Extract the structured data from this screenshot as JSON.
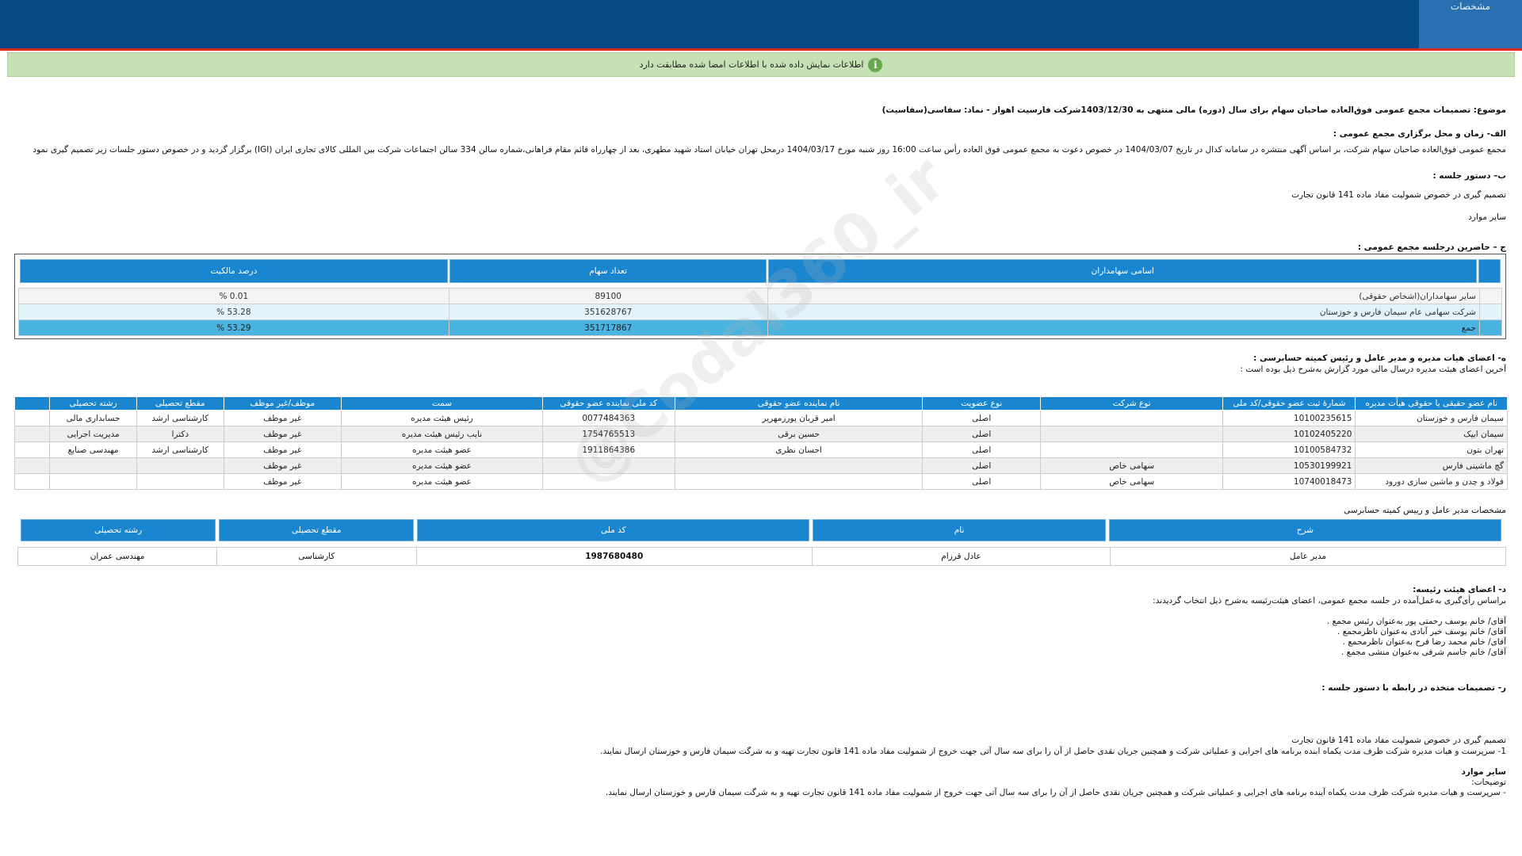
{
  "top": {
    "tab_label": "مشخصات"
  },
  "banner": {
    "text": "اطلاعات نمایش داده شده با اطلاعات امضا شده مطابقت دارد"
  },
  "subject": "موضوع: تصمیمات مجمع عمومی فوق‌العاده صاحبان سهام برای سال (دوره) مالی منتهی به 1403/12/30شرکت فارسیت اهواز - نماد: سفاسی(سفاسیت)",
  "section_a": {
    "title": "الف- زمان و محل برگزاری مجمع عمومی :",
    "text": "مجمع عمومی فوق‌العاده صاحبان سهام شرکت، بر اساس آگهی منتشره در سامانه کدال در تاریخ 1404/03/07 در خصوص دعوت به مجمع عمومی فوق العاده رأس ساعت 16:00 روز شنبه مورخ 1404/03/17 درمحل تهران خیابان استاد شهید مطهری، بعد از چهارراه قائم مقام فراهانی،شماره سالن 334 سالن اجتماعات شرکت بین المللی کالای تجاری ایران (IGI)  برگزار گردید و در خصوص دستور جلسات زیر تصمیم گیری نمود"
  },
  "section_b": {
    "title": "ب– دستور جلسه :",
    "items": [
      "تصمیم گیری در خصوص شمولیت مفاد ماده 141 قانون تجارت",
      "سایر موارد"
    ]
  },
  "section_c": {
    "title": "ج – حاضرین درجلسه مجمع عمومی :",
    "headers": [
      "اسامی سهامداران",
      "تعداد سهام",
      "درصد مالکیت"
    ],
    "rows": [
      [
        "سایر سهامداران(اشخاص حقوقی)",
        "89100",
        "0.01 %"
      ],
      [
        "شرکت سهامی عام سیمان فارس و خوزستان",
        "351628767",
        "53.28 %"
      ],
      [
        "جمع",
        "351717867",
        "53.29 %"
      ]
    ]
  },
  "section_h": {
    "title": "ه- اعضای هیات مدیره و مدیر عامل و رئیس کمیته حسابرسی :",
    "subtitle": "آخرین اعضای هیئت مدیره درسال مالی مورد گزارش به‌شرح ذیل بوده است :",
    "headers": [
      "نام عضو حقیقی یا حقوقی هیأت مدیره",
      "شمارۀ ثبت عضو حقوقی/کد ملی",
      "نوع شرکت",
      "نوع عضویت",
      "نام نماینده عضو حقوقی",
      "کد ملی نماینده عضو حقوقی",
      "سمت",
      "موظف/غیر موظف",
      "مقطع تحصیلی",
      "رشته تحصیلی"
    ],
    "rows": [
      [
        "سیمان فارس و خوزستان",
        "10100235615",
        "",
        "اصلی",
        "امیر قربان پورزمهریر",
        "0077484363",
        "رئیس هیئت مدیره",
        "غیر موظف",
        "کارشناسی ارشد",
        "حسابداری مالی"
      ],
      [
        "سیمان ایپک",
        "10102405220",
        "",
        "اصلی",
        "حسین برقی",
        "1754765513",
        "نایب رئیس هیئت مدیره",
        "غیر موظف",
        "دکترا",
        "مدیریت اجرایی"
      ],
      [
        "تهران بتون",
        "10100584732",
        "",
        "اصلی",
        "احسان نظری",
        "1911864386",
        "عضو هیئت مدیره",
        "غیر موظف",
        "کارشناسی ارشد",
        "مهندسی صنایع"
      ],
      [
        "گچ ماشینی فارس",
        "10530199921",
        "سهامی خاص",
        "اصلی",
        "",
        "",
        "عضو هیئت مدیره",
        "غیر موظف",
        "",
        ""
      ],
      [
        "فولاد و چدن و ماشین سازی دورود",
        "10740018473",
        "سهامی خاص",
        "اصلی",
        "",
        "",
        "عضو هیئت مدیره",
        "غیر موظف",
        "",
        ""
      ]
    ]
  },
  "ceo": {
    "title": "مشخصات مدیر عامل و رییس کمیته حسابرسی",
    "headers": [
      "شرح",
      "نام",
      "کد ملی",
      "مقطع تحصیلی",
      "رشته تحصیلی"
    ],
    "row": [
      "مدیر عامل",
      "عادل قرزام",
      "1987680480",
      "کارشناسی",
      "مهندسی عمران"
    ]
  },
  "section_d": {
    "title": "د- اعضای هیئت رئیسه:",
    "subtitle": "براساس رأی‌گیری به‌عمل‌آمده در جلسه مجمع عمومی، اعضای هیئت‌رئیسه به‌شرح ذیل انتخاب گردیدند:",
    "items": [
      "آقای/ خانم  یوسف رحمتی پور  به‌عنوان رئیس مجمع .",
      "آقای/ خانم  یوسف خیر آبادی  به‌عنوان ناظرمجمع .",
      "آقای/ خانم  محمد رضا فرح  به‌عنوان ناظرمجمع .",
      "آقای/ خانم  جاسم شرفی  به‌عنوان منشی مجمع ."
    ]
  },
  "section_r": {
    "title": "ر- تصمیمات متخذه در رابطه با دستور جلسه :",
    "line1": "تصمیم گیری در خصوص شمولیت مفاد ماده 141 قانون تجارت",
    "line2": "1- سرپرست و هیات مدیره شرکت ظرف مدت یکماه ابنده برنامه های اجرایی و عملیاتی شرکت و همچنین جریان نقدی حاصل از آن را برای سه سال آتی جهت خروج از شمولیت مفاد ماده 141 قانون تجارت تهیه و به شرگت سیمان فارس و خوزستان ارسال نمایند.",
    "other_title": "سایر موارد",
    "notes_label": "توضیحات:",
    "notes": "- سرپرست و هیات مدیره شرکت ظرف مدت یکماه آینده برنامه های اجرایی و عملیاتی شرکت و همچنین جریان نقدی حاصل از آن را برای سه سال آتی جهت خروج از شمولیت مفاد ماده 141 قانون تجارت تهیه و به شرگت سیمان فارس و خوزستان ارسال نمایند."
  },
  "watermark": "@Codal360_ir"
}
